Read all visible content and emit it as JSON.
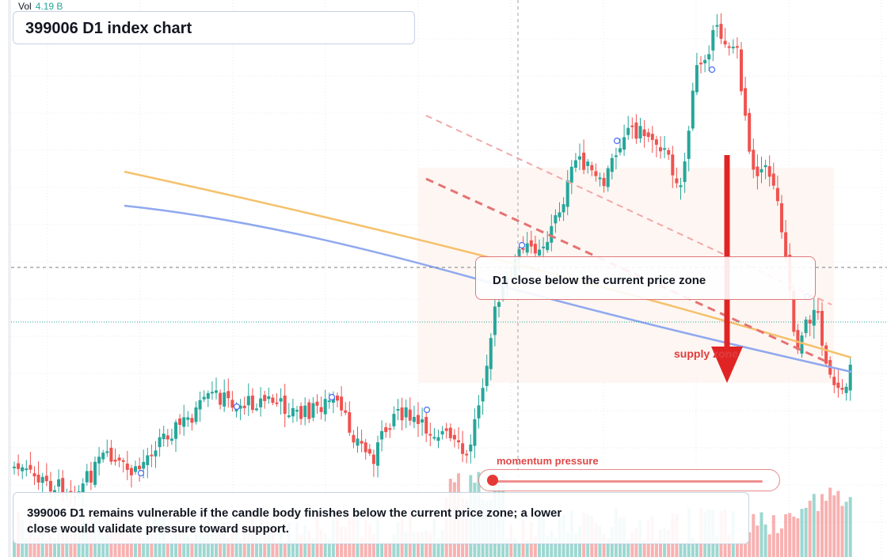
{
  "header": {
    "vol_label": "Vol",
    "vol_value": "4.19 B",
    "title": "399006 D1 index chart"
  },
  "annotations": {
    "callout": "D1 close below the current price zone",
    "zone_label": "supply zone",
    "momentum_label": "momentum pressure",
    "momentum_level": 0.03,
    "note": "399006 D1 remains vulnerable if the candle body finishes below the current price zone; a lower close would validate pressure toward support."
  },
  "colors": {
    "up": "#26a69a",
    "down": "#ef5350",
    "ma_fast": "#f5c16c",
    "ma_slow": "#8fa8ef",
    "arrow": "#e02424",
    "trend": "#e57373"
  },
  "chart_data": {
    "type": "candlestick",
    "title": "399006 D1 index chart",
    "grid": true,
    "series": [
      {
        "type": "ma",
        "color": "#f5c16c",
        "trend": "declining"
      },
      {
        "type": "ma",
        "color": "#8fa8ef",
        "trend": "declining"
      },
      {
        "type": "volume",
        "last_value": "4.19 B"
      }
    ],
    "annotations": [
      "D1 close below the current price zone",
      "supply zone",
      "momentum pressure"
    ]
  }
}
